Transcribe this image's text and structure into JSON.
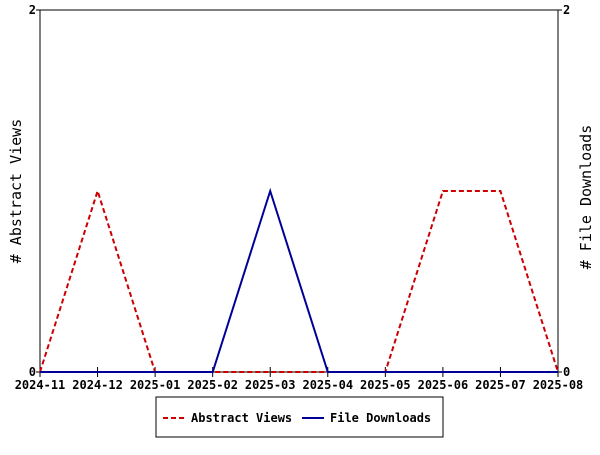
{
  "chart_data": {
    "type": "line",
    "title": "",
    "x": [
      "2024-11",
      "2024-12",
      "2025-01",
      "2025-02",
      "2025-03",
      "2025-04",
      "2025-05",
      "2025-06",
      "2025-07",
      "2025-08"
    ],
    "ylabel": "# Abstract Views",
    "y2label": "# File Downloads",
    "ylim": [
      0,
      2
    ],
    "y2lim": [
      0,
      2
    ],
    "y_ticks": [
      "0",
      "2"
    ],
    "y2_ticks": [
      "0",
      "2"
    ],
    "grid": false,
    "legend_position": "bottom-center",
    "series": [
      {
        "name": "Abstract Views",
        "axis": "left",
        "color": "#cc0000",
        "style": "dashed",
        "values": [
          0,
          1,
          0,
          0,
          0,
          0,
          0,
          1,
          1,
          0
        ]
      },
      {
        "name": "File Downloads",
        "axis": "right",
        "color": "#000099",
        "style": "solid",
        "values": [
          0,
          0,
          0,
          0,
          1,
          0,
          0,
          0,
          0,
          0
        ]
      }
    ]
  }
}
